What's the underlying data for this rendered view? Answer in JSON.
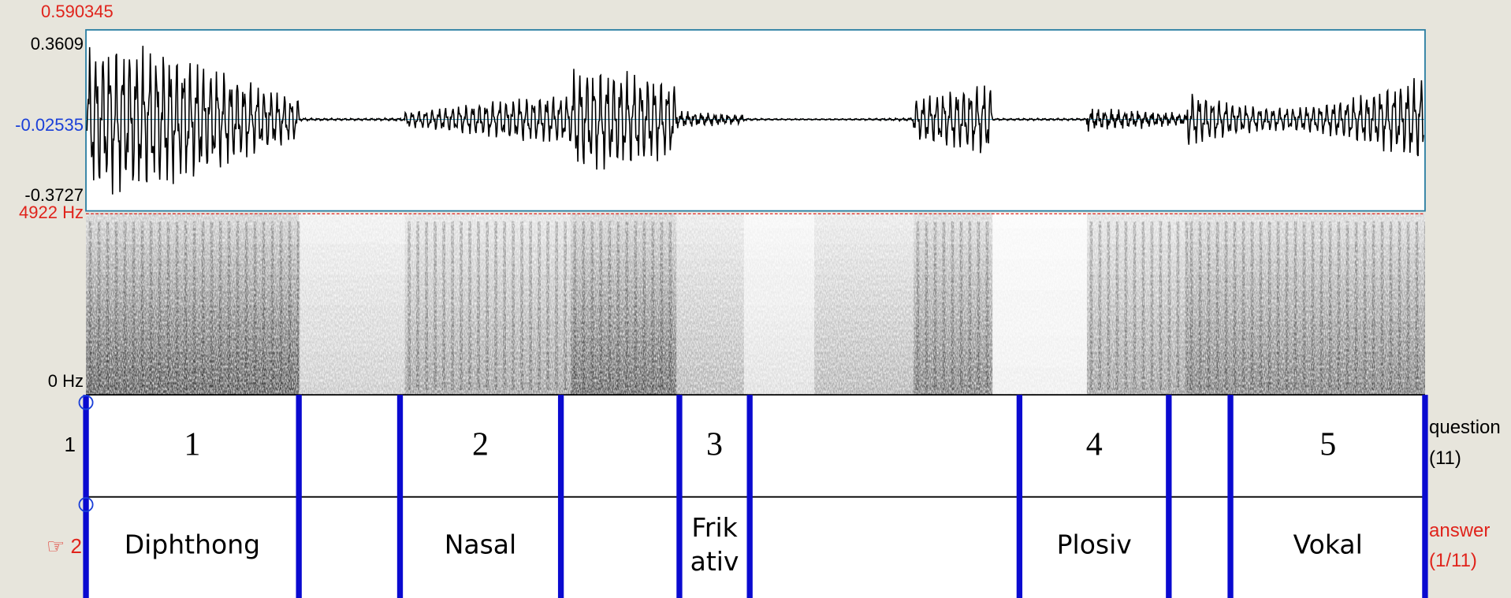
{
  "axis": {
    "top": "0.590345",
    "wave_max": "0.3609",
    "cursor": "-0.02535",
    "wave_min": "-0.3727",
    "freq_max": "4922 Hz",
    "freq_min": "0 Hz"
  },
  "tiers": [
    {
      "number": "1",
      "name": "question",
      "count": "(11)",
      "intervals": [
        "1",
        "2",
        "3",
        "4",
        "5"
      ]
    },
    {
      "marker": "☞",
      "number": "2",
      "name": "answer",
      "count": "(1/11)",
      "intervals": [
        "Diphthong",
        "Nasal",
        "Frikativ",
        "Plosiv",
        "Vokal"
      ]
    }
  ]
}
